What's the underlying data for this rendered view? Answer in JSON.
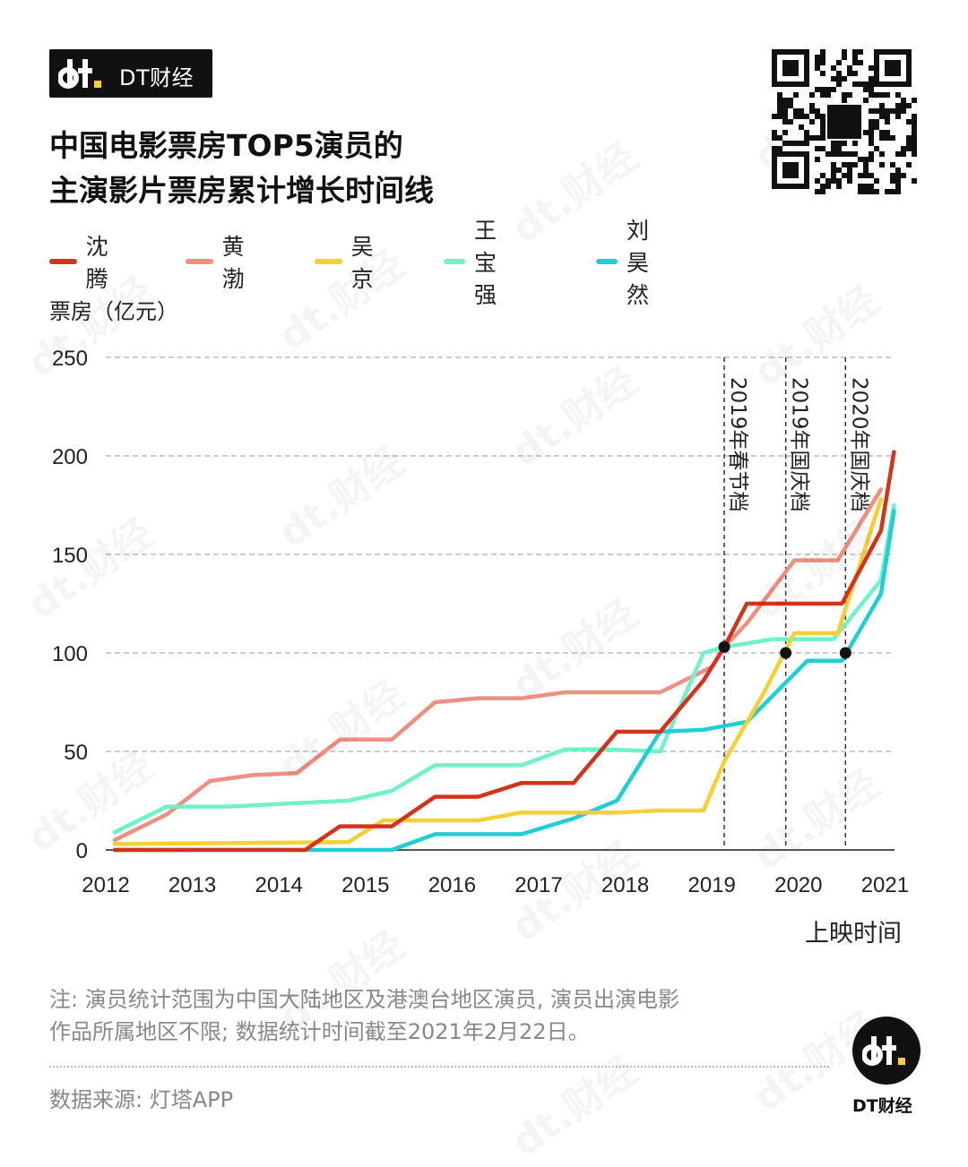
{
  "brand": {
    "logo_text": "DT财经",
    "badge_text": "DT财经",
    "watermark": "dt.财经"
  },
  "title": {
    "line1": "中国电影票房TOP5演员的",
    "line2": "主演影片票房累计增长时间线"
  },
  "legend": [
    {
      "label": "沈腾",
      "color": "#d4331b"
    },
    {
      "label": "黄渤",
      "color": "#ee8f80"
    },
    {
      "label": "吴京",
      "color": "#f6cf35"
    },
    {
      "label": "王宝强",
      "color": "#6ff2c9"
    },
    {
      "label": "刘昊然",
      "color": "#1fcfd6"
    }
  ],
  "axis": {
    "unit_label": "票房（亿元）",
    "x_title": "上映时间"
  },
  "note": {
    "line1": "注: 演员统计范围为中国大陆地区及港澳台地区演员, 演员出演电影",
    "line2": "作品所属地区不限; 数据统计时间截至2021年2月22日。"
  },
  "source": "数据来源: 灯塔APP",
  "chart_data": {
    "type": "line",
    "title": "中国电影票房TOP5演员的主演影片票房累计增长时间线",
    "xlabel": "上映时间",
    "ylabel": "票房（亿元）",
    "xlim": [
      2012,
      2021.1
    ],
    "ylim": [
      0,
      250
    ],
    "x_ticks": [
      2012,
      2013,
      2014,
      2015,
      2016,
      2017,
      2018,
      2019,
      2020,
      2021
    ],
    "y_ticks": [
      0,
      50,
      100,
      150,
      200,
      250
    ],
    "grid": true,
    "legend_position": "top",
    "annotations": [
      {
        "x": 2019.04,
        "label": "2019年春节档",
        "y": 103
      },
      {
        "x": 2019.75,
        "label": "2019年国庆档",
        "y": 100
      },
      {
        "x": 2020.44,
        "label": "2020年国庆档",
        "y": 100
      }
    ],
    "series": [
      {
        "name": "沈腾",
        "color": "#d4331b",
        "points": [
          [
            2012,
            0
          ],
          [
            2014.2,
            0
          ],
          [
            2014.6,
            12
          ],
          [
            2015.2,
            12
          ],
          [
            2015.7,
            27
          ],
          [
            2016.2,
            27
          ],
          [
            2016.7,
            34
          ],
          [
            2017.3,
            34
          ],
          [
            2017.8,
            60
          ],
          [
            2018.3,
            60
          ],
          [
            2018.8,
            86
          ],
          [
            2019.04,
            103
          ],
          [
            2019.3,
            125
          ],
          [
            2020.4,
            125
          ],
          [
            2020.85,
            162
          ],
          [
            2021.0,
            202
          ]
        ]
      },
      {
        "name": "黄渤",
        "color": "#ee8f80",
        "points": [
          [
            2012,
            5
          ],
          [
            2012.6,
            18
          ],
          [
            2013.1,
            35
          ],
          [
            2013.6,
            38
          ],
          [
            2014.1,
            39
          ],
          [
            2014.6,
            56
          ],
          [
            2015.2,
            56
          ],
          [
            2015.7,
            75
          ],
          [
            2016.2,
            77
          ],
          [
            2016.7,
            77
          ],
          [
            2017.2,
            80
          ],
          [
            2017.7,
            80
          ],
          [
            2018.3,
            80
          ],
          [
            2018.9,
            93
          ],
          [
            2019.04,
            103
          ],
          [
            2019.3,
            115
          ],
          [
            2019.85,
            147
          ],
          [
            2020.35,
            147
          ],
          [
            2020.85,
            183
          ]
        ]
      },
      {
        "name": "吴京",
        "color": "#f6cf35",
        "points": [
          [
            2012,
            3
          ],
          [
            2014.7,
            4
          ],
          [
            2015.1,
            15
          ],
          [
            2015.6,
            15
          ],
          [
            2016.2,
            15
          ],
          [
            2016.7,
            19
          ],
          [
            2017.3,
            19
          ],
          [
            2017.8,
            19
          ],
          [
            2018.3,
            20
          ],
          [
            2018.8,
            20
          ],
          [
            2019.04,
            45
          ],
          [
            2019.5,
            80
          ],
          [
            2019.85,
            110
          ],
          [
            2020.35,
            110
          ],
          [
            2020.85,
            178
          ]
        ]
      },
      {
        "name": "王宝强",
        "color": "#6ff2c9",
        "points": [
          [
            2012,
            9
          ],
          [
            2012.6,
            22
          ],
          [
            2013.3,
            22
          ],
          [
            2014.2,
            24
          ],
          [
            2014.7,
            25
          ],
          [
            2015.2,
            30
          ],
          [
            2015.7,
            43
          ],
          [
            2016.2,
            43
          ],
          [
            2016.7,
            43
          ],
          [
            2017.2,
            51
          ],
          [
            2017.7,
            51
          ],
          [
            2018.3,
            50
          ],
          [
            2018.8,
            100
          ],
          [
            2019.04,
            103
          ],
          [
            2019.6,
            107
          ],
          [
            2020.3,
            107
          ],
          [
            2020.85,
            137
          ],
          [
            2021.0,
            175
          ]
        ]
      },
      {
        "name": "刘昊然",
        "color": "#1fcfd6",
        "points": [
          [
            2012,
            0
          ],
          [
            2015.2,
            0
          ],
          [
            2015.7,
            8
          ],
          [
            2016.2,
            8
          ],
          [
            2016.7,
            8
          ],
          [
            2017.3,
            16
          ],
          [
            2017.8,
            25
          ],
          [
            2018.3,
            60
          ],
          [
            2018.8,
            61
          ],
          [
            2019.3,
            65
          ],
          [
            2020.0,
            96
          ],
          [
            2020.4,
            96
          ],
          [
            2020.85,
            130
          ],
          [
            2021.0,
            172
          ]
        ]
      }
    ]
  }
}
